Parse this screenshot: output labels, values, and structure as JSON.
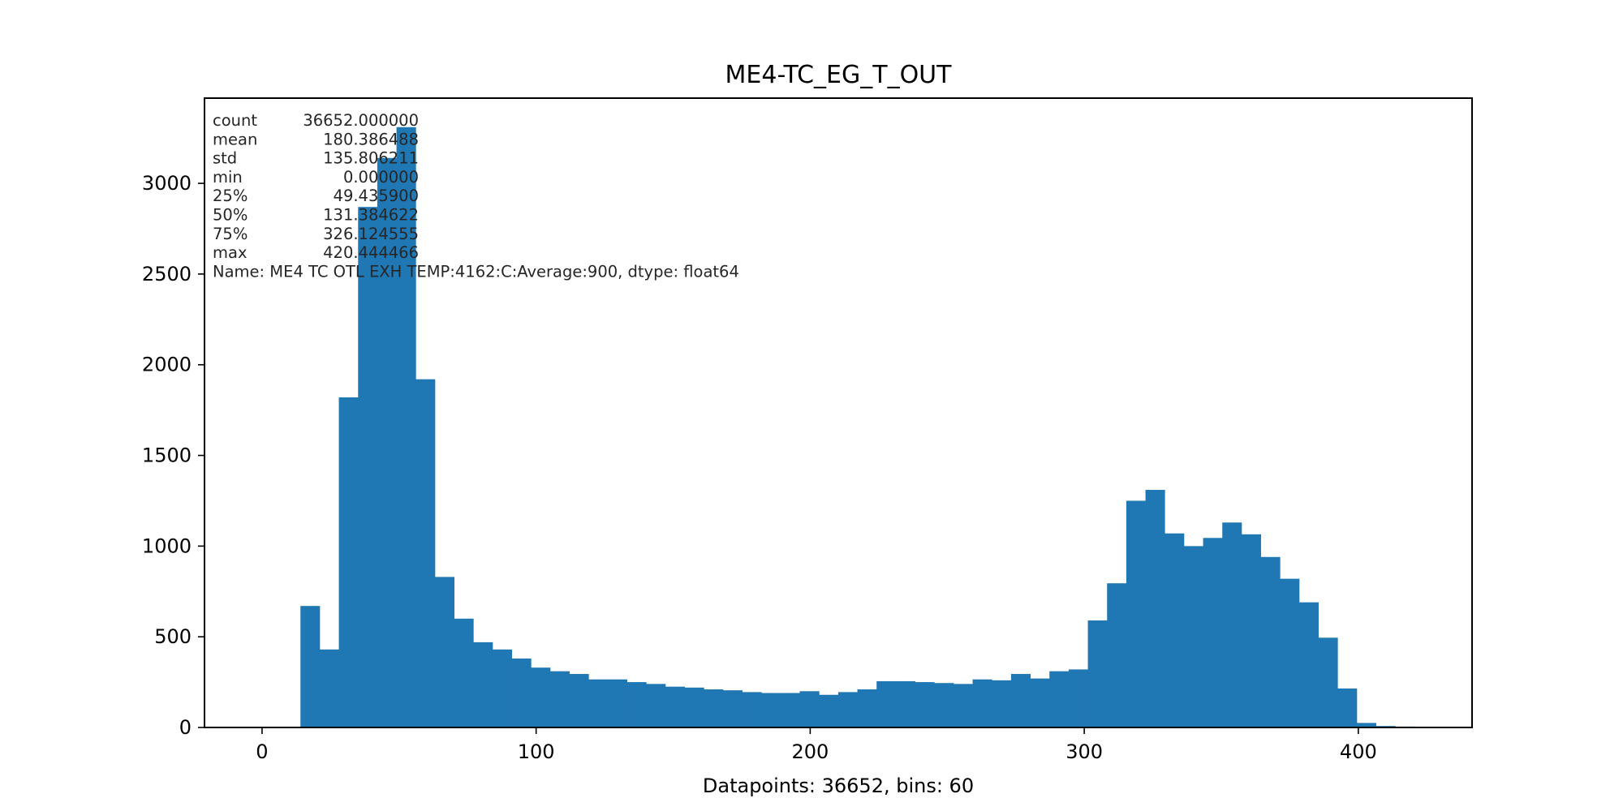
{
  "chart_data": {
    "type": "bar",
    "title": "ME4-TC_EG_T_OUT",
    "xlabel": "Datapoints: 36652, bins: 60",
    "ylabel": "",
    "xlim": [
      -21.0,
      441.5
    ],
    "ylim": [
      0,
      3470
    ],
    "xticks": [
      "0",
      "100",
      "200",
      "300",
      "400"
    ],
    "yticks": [
      "0",
      "500",
      "1000",
      "1500",
      "2000",
      "2500",
      "3000"
    ],
    "bin_start": 0.0,
    "bin_width": 7.00741,
    "values": [
      0,
      0,
      670,
      430,
      1820,
      2870,
      3140,
      3310,
      1920,
      830,
      600,
      470,
      430,
      380,
      330,
      310,
      295,
      265,
      265,
      250,
      240,
      225,
      220,
      210,
      205,
      195,
      190,
      190,
      200,
      180,
      195,
      210,
      255,
      255,
      250,
      245,
      240,
      265,
      260,
      295,
      270,
      310,
      320,
      590,
      795,
      1250,
      1310,
      1070,
      1000,
      1045,
      1130,
      1065,
      940,
      820,
      690,
      495,
      215,
      25,
      8,
      5
    ],
    "color": "#1f77b4",
    "grid": false,
    "legend": "none",
    "stats_lines": [
      {
        "label": "count",
        "value": "36652.000000"
      },
      {
        "label": "mean",
        "value": "180.386488"
      },
      {
        "label": "std",
        "value": "135.806211"
      },
      {
        "label": "min",
        "value": "0.000000"
      },
      {
        "label": "25%",
        "value": "49.435900"
      },
      {
        "label": "50%",
        "value": "131.384622"
      },
      {
        "label": "75%",
        "value": "326.124555"
      },
      {
        "label": "max",
        "value": "420.444466"
      }
    ],
    "stats_name_line": "Name: ME4 TC OTL EXH TEMP:4162:C:Average:900, dtype: float64"
  }
}
